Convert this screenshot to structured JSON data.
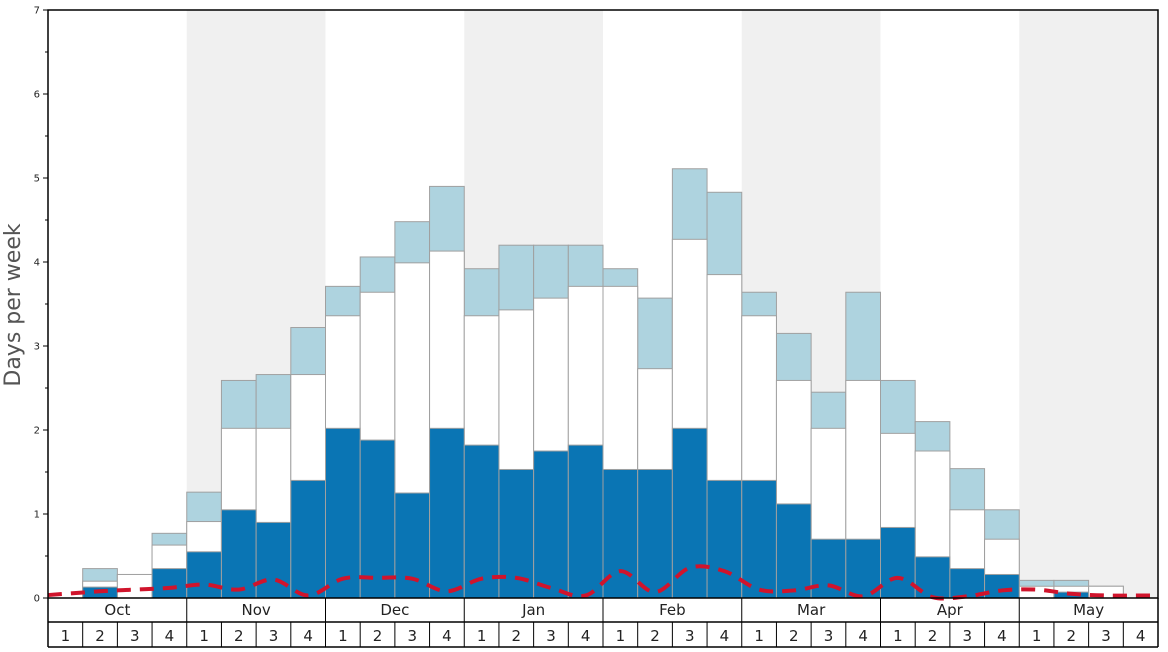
{
  "chart_data": {
    "type": "bar",
    "ylabel": "Days per week",
    "ylim": [
      0,
      7
    ],
    "yticks": [
      "0",
      "1",
      "2",
      "3",
      "4",
      "5",
      "6",
      "7"
    ],
    "months": [
      "Oct",
      "Nov",
      "Dec",
      "Jan",
      "Feb",
      "Mar",
      "Apr",
      "May"
    ],
    "week_labels": [
      "1",
      "2",
      "3",
      "4"
    ],
    "series": [
      {
        "key": "dark",
        "values": [
          0,
          0.13,
          0,
          0.35,
          0.55,
          1.05,
          0.9,
          1.4,
          2.02,
          1.88,
          1.25,
          2.02,
          1.82,
          1.53,
          1.75,
          1.82,
          1.53,
          1.53,
          2.02,
          1.4,
          1.4,
          1.12,
          0.7,
          0.7,
          0.84,
          0.49,
          0.35,
          0.28,
          0,
          0.07,
          0,
          0
        ]
      },
      {
        "key": "white",
        "values": [
          0,
          0.2,
          0.28,
          0.63,
          0.91,
          2.02,
          2.02,
          2.66,
          3.36,
          3.64,
          3.99,
          4.13,
          3.36,
          3.43,
          3.57,
          3.71,
          3.71,
          2.73,
          4.27,
          3.85,
          3.36,
          2.59,
          2.02,
          2.59,
          1.96,
          1.75,
          1.05,
          0.7,
          0.14,
          0.14,
          0.14,
          0
        ]
      },
      {
        "key": "light",
        "values": [
          0,
          0.35,
          0.28,
          0.77,
          1.26,
          2.59,
          2.66,
          3.22,
          3.71,
          4.06,
          4.48,
          4.9,
          3.92,
          4.2,
          4.2,
          4.2,
          3.92,
          3.57,
          5.11,
          4.83,
          3.64,
          3.15,
          2.45,
          3.64,
          2.59,
          2.1,
          1.54,
          1.05,
          0.21,
          0.21,
          0.14,
          0
        ]
      }
    ],
    "line": {
      "style": "dashed",
      "values": [
        0.05,
        0.08,
        0.1,
        0.12,
        0.16,
        0.1,
        0.22,
        0.03,
        0.23,
        0.24,
        0.23,
        0.08,
        0.23,
        0.24,
        0.12,
        0.03,
        0.32,
        0.07,
        0.36,
        0.32,
        0.1,
        0.09,
        0.15,
        0.02,
        0.24,
        0.01,
        0.02,
        0.09,
        0.1,
        0.05,
        0.03,
        0.03
      ]
    },
    "colors": {
      "dark": "#0a75b4",
      "light": "#aed3df",
      "white": "#ffffff",
      "bar_stroke": "#a0a0a0",
      "line": "#d0142c",
      "band": "#f0f0f0",
      "frame": "#000000"
    }
  }
}
